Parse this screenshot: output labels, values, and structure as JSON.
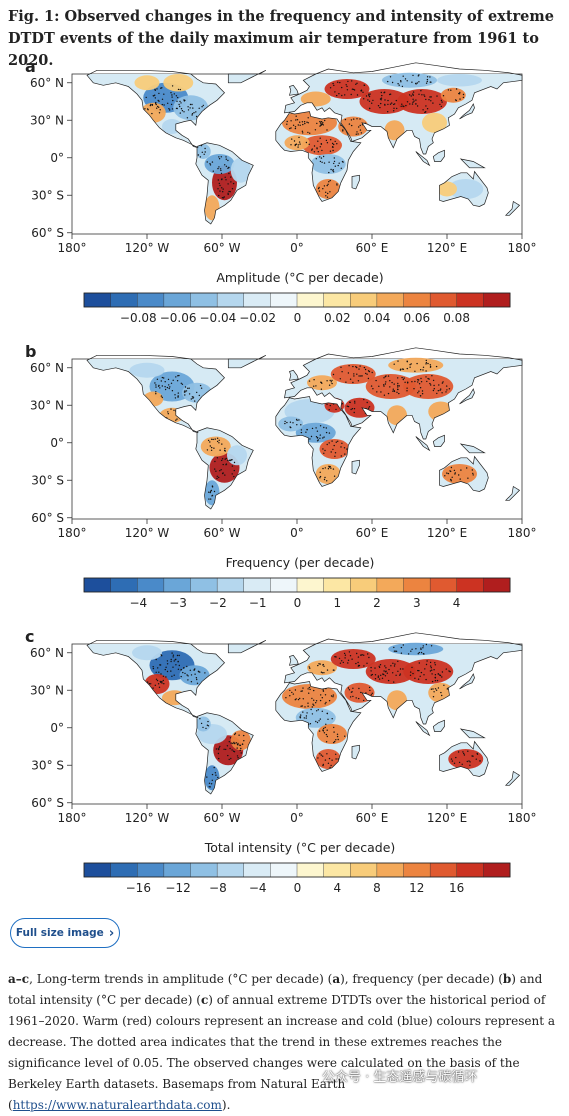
{
  "figure": {
    "title": "Fig. 1: Observed changes in the frequency and intensity of extreme DTDT events of the daily maximum air temperature from 1961 to 2020."
  },
  "panels": [
    {
      "id": "a",
      "label": "a",
      "lat_ticks": [
        "60° N",
        "30° N",
        "0°",
        "30° S",
        "60° S"
      ],
      "lon_ticks": [
        "180°",
        "120° W",
        "60° W",
        "0°",
        "60° E",
        "120° E",
        "180°"
      ],
      "colorbar_title": "Amplitude (°C per decade)",
      "colorbar_ticks": [
        "−0.08",
        "−0.06",
        "−0.04",
        "−0.02",
        "0",
        "0.02",
        "0.04",
        "0.06",
        "0.08"
      ]
    },
    {
      "id": "b",
      "label": "b",
      "lat_ticks": [
        "60° N",
        "30° N",
        "0°",
        "30° S",
        "60° S"
      ],
      "lon_ticks": [
        "180°",
        "120° W",
        "60° W",
        "0°",
        "60° E",
        "120° E",
        "180°"
      ],
      "colorbar_title": "Frequency (per decade)",
      "colorbar_ticks": [
        "−4",
        "−3",
        "−2",
        "−1",
        "0",
        "1",
        "2",
        "3",
        "4"
      ]
    },
    {
      "id": "c",
      "label": "c",
      "lat_ticks": [
        "60° N",
        "30° N",
        "0°",
        "30° S",
        "60° S"
      ],
      "lon_ticks": [
        "180°",
        "120° W",
        "60° W",
        "0°",
        "60° E",
        "120° E",
        "180°"
      ],
      "colorbar_title": "Total intensity (°C per decade)",
      "colorbar_ticks": [
        "−16",
        "−12",
        "−8",
        "−4",
        "0",
        "4",
        "8",
        "12",
        "16"
      ]
    }
  ],
  "colorbar_colors": [
    "#1d4f9c",
    "#2e6db4",
    "#4a8ac9",
    "#6aa6d8",
    "#8fc0e4",
    "#b5d7ee",
    "#d9ebf5",
    "#eef6fa",
    "#fdf6cf",
    "#fce7a4",
    "#f8cc7a",
    "#f3a95a",
    "#ec8440",
    "#e05a30",
    "#cc3322",
    "#b01e1e"
  ],
  "full_size_button": {
    "label": "Full size image",
    "icon": "chevron-right-icon"
  },
  "caption": {
    "p1": "a–c",
    "p2": ", Long-term trends in amplitude (°C per decade) (",
    "p3": "a",
    "p4": "), frequency (per decade) (",
    "p5": "b",
    "p6": ") and total intensity (°C per decade) (",
    "p7": "c",
    "p8": ") of annual extreme DTDTs over the historical period of 1961–2020. Warm (red) colours represent an increase and cold (blue) colours represent a decrease. The dotted area indicates that the trend in these extremes reaches the significance level of 0.05. The observed changes were calculated on the basis of the Berkeley Earth datasets. Basemaps from Natural Earth (",
    "link": "https://www.naturalearthdata.com",
    "p9": ")."
  },
  "watermark": "公众号 · 生态遥感与碳循环"
}
